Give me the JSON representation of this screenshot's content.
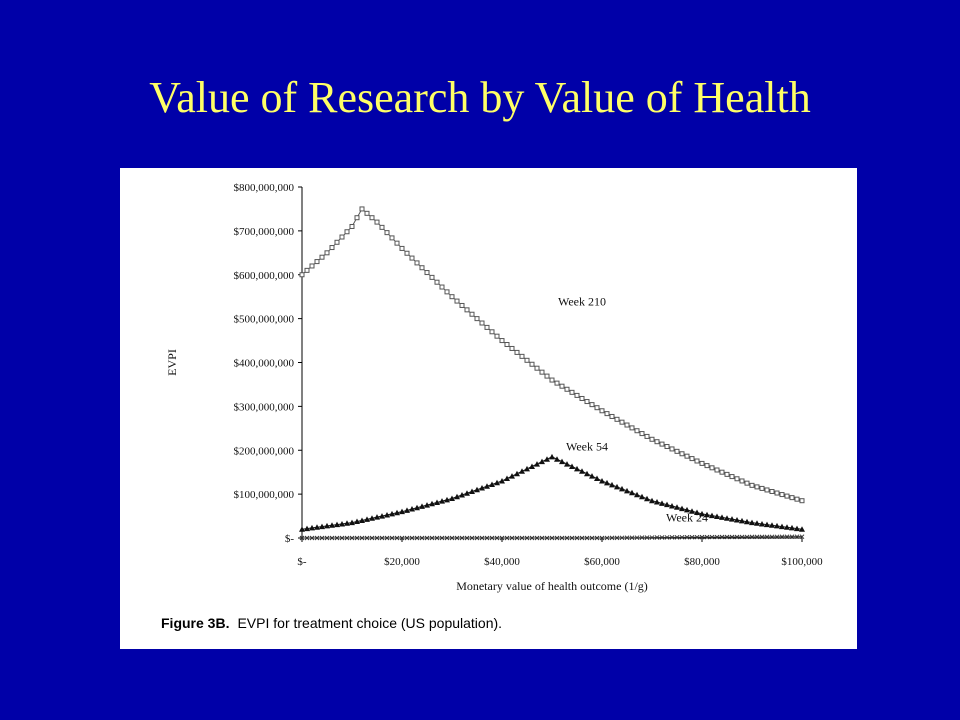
{
  "slide": {
    "title": "Value of Research by Value of Health",
    "colors": {
      "background": "#0000a8",
      "title": "#ffff66",
      "panel": "#ffffff"
    }
  },
  "figure": {
    "caption_label": "Figure 3B.",
    "caption_text": "EVPI for treatment choice (US population)."
  },
  "chart_data": {
    "type": "line",
    "title": "",
    "xlabel": "Monetary value of health outcome (1/g)",
    "ylabel": "EVPI",
    "xlim": [
      0,
      100000
    ],
    "ylim": [
      0,
      800000000
    ],
    "x_ticks": [
      0,
      20000,
      40000,
      60000,
      80000,
      100000
    ],
    "x_tick_labels": [
      "$-",
      "$20,000",
      "$40,000",
      "$60,000",
      "$80,000",
      "$100,000"
    ],
    "y_ticks": [
      0,
      100000000,
      200000000,
      300000000,
      400000000,
      500000000,
      600000000,
      700000000,
      800000000
    ],
    "y_tick_labels": [
      "$-",
      "$100,000,000",
      "$200,000,000",
      "$300,000,000",
      "$400,000,000",
      "$500,000,000",
      "$600,000,000",
      "$700,000,000",
      "$800,000,000"
    ],
    "grid": false,
    "legend": "none (series labeled inline)",
    "series": [
      {
        "name": "Week 210",
        "marker": "open-square",
        "color": "#555555",
        "points": [
          [
            0,
            600000000
          ],
          [
            5000,
            650000000
          ],
          [
            10000,
            710000000
          ],
          [
            12000,
            750000000
          ],
          [
            15000,
            720000000
          ],
          [
            20000,
            660000000
          ],
          [
            30000,
            550000000
          ],
          [
            40000,
            450000000
          ],
          [
            50000,
            360000000
          ],
          [
            60000,
            290000000
          ],
          [
            70000,
            225000000
          ],
          [
            80000,
            170000000
          ],
          [
            90000,
            120000000
          ],
          [
            100000,
            85000000
          ]
        ]
      },
      {
        "name": "Week 54",
        "marker": "filled-triangle",
        "color": "#111111",
        "points": [
          [
            0,
            20000000
          ],
          [
            10000,
            35000000
          ],
          [
            20000,
            60000000
          ],
          [
            30000,
            90000000
          ],
          [
            40000,
            130000000
          ],
          [
            50000,
            185000000
          ],
          [
            60000,
            130000000
          ],
          [
            70000,
            85000000
          ],
          [
            80000,
            55000000
          ],
          [
            90000,
            35000000
          ],
          [
            100000,
            20000000
          ]
        ]
      },
      {
        "name": "Week 24",
        "marker": "x",
        "color": "#333333",
        "points": [
          [
            0,
            0
          ],
          [
            20000,
            0
          ],
          [
            40000,
            0
          ],
          [
            60000,
            0
          ],
          [
            80000,
            2000000
          ],
          [
            100000,
            3000000
          ]
        ]
      }
    ]
  }
}
